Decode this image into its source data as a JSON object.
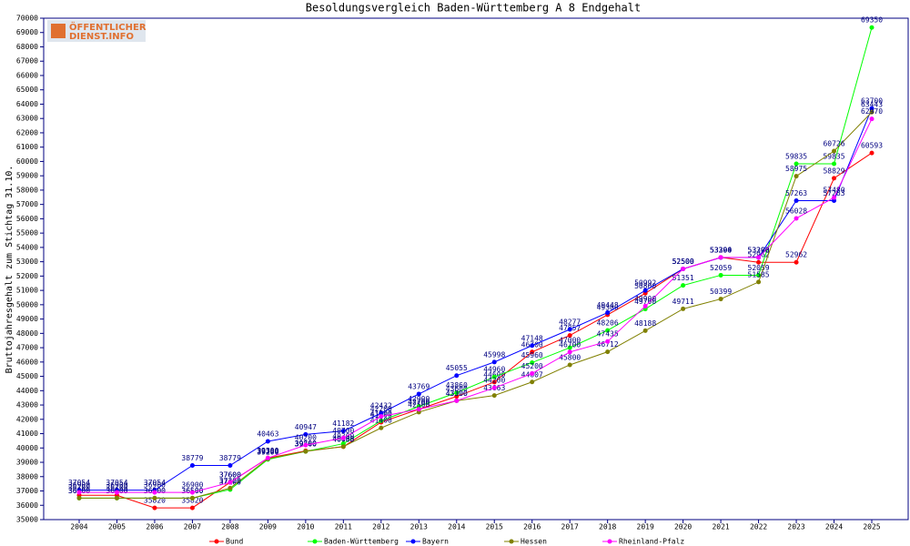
{
  "logo": [
    "ÖFFENTLICHER",
    "DIENST.INFO"
  ],
  "chart_data": {
    "type": "line",
    "title": "Besoldungsvergleich Baden-Württemberg A 8 Endgehalt",
    "y_label": "Bruttojahresgehalt zum Stichtag 31.10.",
    "categories": [
      "2004",
      "2005",
      "2006",
      "2007",
      "2008",
      "2009",
      "2010",
      "2011",
      "2012",
      "2013",
      "2014",
      "2015",
      "2016",
      "2017",
      "2018",
      "2019",
      "2020",
      "2021",
      "2022",
      "2023",
      "2024",
      "2025"
    ],
    "ylim": [
      35000,
      70000
    ],
    "yticks": [
      35000,
      36000,
      37000,
      38000,
      39000,
      40000,
      41000,
      42000,
      43000,
      44000,
      45000,
      46000,
      47000,
      48000,
      49000,
      50000,
      51000,
      52000,
      53000,
      54000,
      55000,
      56000,
      57000,
      58000,
      59000,
      60000,
      61000,
      62000,
      63000,
      64000,
      65000,
      66000,
      67000,
      68000,
      69000,
      70000
    ],
    "series": [
      {
        "name": "Bund",
        "color": "#ff0000",
        "values": [
          36700,
          36700,
          35820,
          35820,
          37600,
          39300,
          39800,
          40088,
          41800,
          42700,
          43600,
          44600,
          46700,
          47857,
          49300,
          50800,
          52500,
          53300,
          52962,
          52962,
          58829,
          60593
        ]
      },
      {
        "name": "Baden-Württemberg",
        "color": "#00ff00",
        "values": [
          36500,
          36500,
          36500,
          36500,
          37100,
          39200,
          39760,
          40300,
          41900,
          42900,
          43860,
          44960,
          45960,
          47000,
          48206,
          49700,
          51351,
          52059,
          52059,
          59835,
          59835,
          69350
        ]
      },
      {
        "name": "Bayern",
        "color": "#0000ff",
        "values": [
          37054,
          37054,
          37054,
          38779,
          38779,
          40463,
          40947,
          41182,
          42432,
          43769,
          45055,
          45998,
          47148,
          48277,
          49448,
          50992,
          52500,
          53294,
          53298,
          57263,
          57263,
          63700
        ]
      },
      {
        "name": "Hessen",
        "color": "#808000",
        "values": [
          36500,
          36500,
          36500,
          36500,
          37200,
          39250,
          39760,
          40100,
          41400,
          42500,
          43300,
          43663,
          44607,
          45800,
          46712,
          48188,
          49711,
          50399,
          51585,
          58975,
          60726,
          63443
        ]
      },
      {
        "name": "Rheinland-Pfalz",
        "color": "#ff00ff",
        "values": [
          36900,
          36900,
          36900,
          36900,
          37600,
          39300,
          40200,
          40700,
          42200,
          42700,
          43300,
          44200,
          45200,
          46700,
          47435,
          49900,
          52500,
          53300,
          53300,
          56028,
          57480,
          62970
        ]
      }
    ]
  }
}
